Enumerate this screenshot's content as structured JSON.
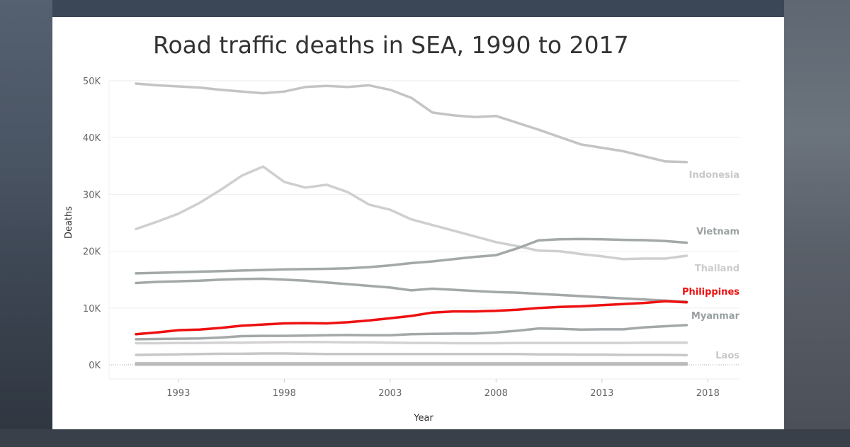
{
  "chart_data": {
    "type": "line",
    "title": "Road traffic deaths in SEA, 1990 to 2017",
    "xlabel": "Year",
    "ylabel": "Deaths",
    "xlim": [
      1990,
      2018
    ],
    "ylim": [
      0,
      50000
    ],
    "x_ticks": [
      1993,
      1998,
      2003,
      2008,
      2013,
      2018
    ],
    "y_ticks": [
      {
        "value": 0,
        "label": "0K"
      },
      {
        "value": 10000,
        "label": "10K"
      },
      {
        "value": 20000,
        "label": "20K"
      },
      {
        "value": 30000,
        "label": "30K"
      },
      {
        "value": 40000,
        "label": "40K"
      },
      {
        "value": 50000,
        "label": "50K"
      }
    ],
    "grid": true,
    "x": [
      1991,
      1992,
      1993,
      1994,
      1995,
      1996,
      1997,
      1998,
      1999,
      2000,
      2001,
      2002,
      2003,
      2004,
      2005,
      2006,
      2007,
      2008,
      2009,
      2010,
      2011,
      2012,
      2013,
      2014,
      2015,
      2016,
      2017
    ],
    "series": [
      {
        "name": "Indonesia",
        "color": "#c4c4c4",
        "width": 3.5,
        "labeled": true,
        "values": [
          49500,
          49200,
          49000,
          48800,
          48400,
          48100,
          47800,
          48100,
          48900,
          49100,
          48900,
          49200,
          48400,
          47000,
          44400,
          43900,
          43600,
          43800,
          42600,
          41400,
          40100,
          38800,
          38200,
          37600,
          36700,
          35800,
          35700
        ]
      },
      {
        "name": "Thailand",
        "color": "#cfcfcf",
        "width": 3.5,
        "labeled": true,
        "values": [
          23900,
          25200,
          26600,
          28500,
          30800,
          33300,
          34900,
          32200,
          31200,
          31700,
          30400,
          28200,
          27300,
          25600,
          24600,
          23600,
          22600,
          21600,
          20900,
          20100,
          20000,
          19500,
          19100,
          18600,
          18700,
          18700,
          19200
        ]
      },
      {
        "name": "Vietnam",
        "color": "#a3a8a9",
        "width": 3.5,
        "labeled": true,
        "values": [
          16100,
          16200,
          16300,
          16400,
          16500,
          16600,
          16700,
          16800,
          16850,
          16900,
          17000,
          17200,
          17500,
          17900,
          18200,
          18600,
          19000,
          19300,
          20500,
          21900,
          22100,
          22150,
          22100,
          22000,
          21950,
          21800,
          21500
        ]
      },
      {
        "name": "",
        "color": "#a3a8a9",
        "width": 3.5,
        "labeled": false,
        "values": [
          14400,
          14600,
          14700,
          14800,
          15000,
          15100,
          15150,
          15000,
          14800,
          14500,
          14200,
          13900,
          13600,
          13100,
          13400,
          13200,
          13000,
          12800,
          12700,
          12500,
          12300,
          12100,
          11900,
          11700,
          11500,
          11300,
          11100
        ]
      },
      {
        "name": "Philippines",
        "color": "#ee1111",
        "width": 3.5,
        "labeled": true,
        "values": [
          5400,
          5700,
          6100,
          6200,
          6500,
          6900,
          7100,
          7300,
          7350,
          7300,
          7500,
          7800,
          8200,
          8600,
          9200,
          9400,
          9400,
          9500,
          9700,
          10000,
          10200,
          10300,
          10500,
          10700,
          10900,
          11200,
          11000
        ]
      },
      {
        "name": "Myanmar",
        "color": "#a3a8a9",
        "width": 3.5,
        "labeled": true,
        "values": [
          4500,
          4550,
          4600,
          4650,
          4800,
          5050,
          5100,
          5100,
          5150,
          5200,
          5250,
          5200,
          5200,
          5400,
          5450,
          5500,
          5500,
          5700,
          6000,
          6400,
          6350,
          6200,
          6250,
          6250,
          6600,
          6800,
          7000
        ]
      },
      {
        "name": "",
        "color": "#d2d2d2",
        "width": 3.5,
        "labeled": false,
        "values": [
          3800,
          3800,
          3850,
          3850,
          3900,
          3900,
          3950,
          4000,
          4000,
          4000,
          3950,
          3950,
          3900,
          3850,
          3850,
          3800,
          3800,
          3800,
          3850,
          3850,
          3850,
          3850,
          3850,
          3850,
          3900,
          3900,
          3900
        ]
      },
      {
        "name": "Laos",
        "color": "#c7c7c7",
        "width": 3.5,
        "labeled": true,
        "values": [
          1750,
          1800,
          1850,
          1900,
          1950,
          1950,
          2000,
          2000,
          1950,
          1900,
          1900,
          1900,
          1900,
          1900,
          1900,
          1900,
          1900,
          1900,
          1900,
          1850,
          1850,
          1800,
          1800,
          1750,
          1750,
          1750,
          1700
        ]
      },
      {
        "name": "",
        "color": "#c2c2c2",
        "width": 3.5,
        "labeled": false,
        "values": [
          300,
          300,
          300,
          300,
          300,
          300,
          300,
          300,
          300,
          300,
          300,
          300,
          300,
          300,
          300,
          300,
          300,
          300,
          300,
          300,
          300,
          300,
          300,
          300,
          300,
          300,
          300
        ]
      },
      {
        "name": "",
        "color": "#b8b8b8",
        "width": 3.5,
        "labeled": false,
        "values": [
          50,
          50,
          50,
          50,
          50,
          50,
          50,
          50,
          50,
          50,
          50,
          50,
          50,
          50,
          50,
          50,
          50,
          50,
          50,
          50,
          50,
          50,
          50,
          50,
          50,
          50,
          50
        ]
      }
    ]
  }
}
